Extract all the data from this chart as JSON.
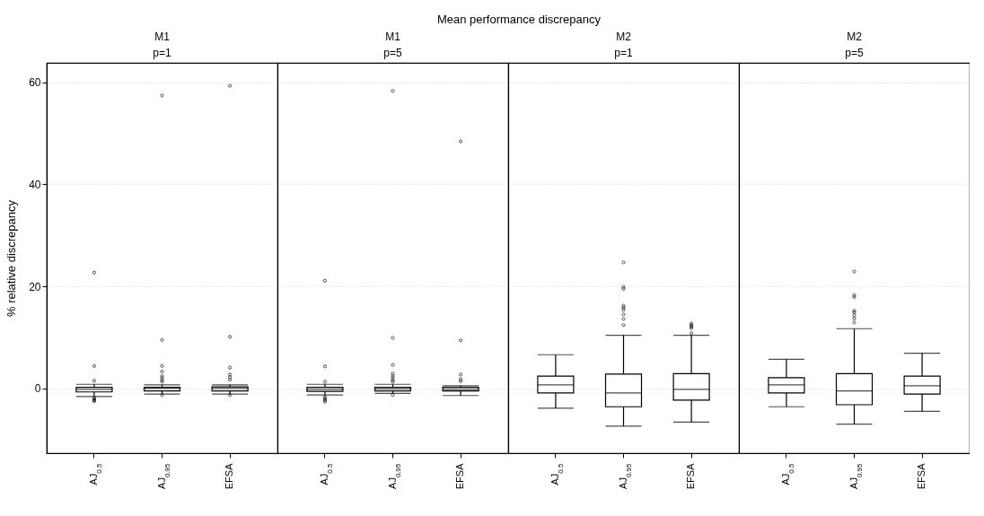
{
  "chart_data": [
    {
      "type": "box",
      "title": "M1",
      "subtitle": "p=1",
      "ylabel": "% relative discrepancy",
      "annotations": [
        "Mean performance discrepancy"
      ],
      "categories": [
        "AJ$_{0.5}$",
        "AJ$_{0.95}$",
        "EFSA"
      ],
      "ylim": [
        -12.7,
        63.8
      ],
      "yticks": [
        0,
        20,
        40,
        60
      ],
      "grid": "y",
      "boxes": [
        {
          "low": -1.6,
          "q1": -0.7,
          "median": -0.2,
          "q3": 0.2,
          "high": 0.8,
          "outliers": [
            22.7,
            4.4,
            1.5,
            -1.9,
            -2.1,
            -2.3,
            -2.5
          ]
        },
        {
          "low": -1.1,
          "q1": -0.5,
          "median": 0.0,
          "q3": 0.2,
          "high": 0.7,
          "outliers": [
            57.4,
            9.5,
            4.4,
            3.3,
            2.4,
            2.0,
            1.6,
            1.3,
            -1.3
          ]
        },
        {
          "low": -1.1,
          "q1": -0.5,
          "median": 0.0,
          "q3": 0.3,
          "high": 0.7,
          "outliers": [
            59.3,
            10.1,
            4.1,
            2.7,
            2.2,
            1.7,
            -1.3
          ]
        }
      ]
    },
    {
      "type": "box",
      "title": "M1",
      "subtitle": "p=5",
      "categories": [
        "AJ$_{0.5}$",
        "AJ$_{0.95}$",
        "EFSA"
      ],
      "ylim": [
        -12.7,
        63.8
      ],
      "yticks": [
        0,
        20,
        40,
        60
      ],
      "grid": "y",
      "tick_labels": "x",
      "boxes": [
        {
          "low": -1.3,
          "q1": -0.6,
          "median": -0.2,
          "q3": 0.2,
          "high": 0.8,
          "outliers": [
            21.1,
            4.3,
            1.3,
            -1.7,
            -2.0,
            -2.3,
            -2.6
          ]
        },
        {
          "low": -1.0,
          "q1": -0.5,
          "median": -0.1,
          "q3": 0.2,
          "high": 0.8,
          "outliers": [
            58.3,
            9.9,
            4.6,
            2.9,
            2.4,
            2.0,
            1.6,
            1.3,
            -1.3
          ]
        },
        {
          "low": -1.4,
          "q1": -0.5,
          "median": -0.2,
          "q3": 0.2,
          "high": 0.5,
          "outliers": [
            48.4,
            9.4,
            2.7,
            1.8,
            1.4
          ]
        }
      ]
    },
    {
      "type": "box",
      "title": "M2",
      "subtitle": "p=1",
      "categories": [
        "AJ$_{0.5}$",
        "AJ$_{0.95}$",
        "EFSA"
      ],
      "ylim": [
        -12.7,
        63.8
      ],
      "yticks": [
        0,
        20,
        40,
        60
      ],
      "grid": "y",
      "tick_labels": "x",
      "boxes": [
        {
          "low": -3.9,
          "q1": -0.9,
          "median": 0.7,
          "q3": 2.4,
          "high": 6.6
        },
        {
          "low": -7.4,
          "q1": -3.6,
          "median": -0.9,
          "q3": 2.8,
          "high": 10.4,
          "outliers": [
            24.7,
            19.9,
            19.5,
            16.2,
            15.8,
            15.4,
            14.5,
            13.6,
            12.4
          ]
        },
        {
          "low": -6.6,
          "q1": -2.3,
          "median": -0.2,
          "q3": 2.9,
          "high": 10.4,
          "outliers": [
            12.7,
            12.4,
            12.1,
            11.8,
            10.8
          ]
        }
      ]
    },
    {
      "type": "box",
      "title": "M2",
      "subtitle": "p=5",
      "categories": [
        "AJ$_{0.5}$",
        "AJ$_{0.95}$",
        "EFSA"
      ],
      "ylim": [
        -12.7,
        63.8
      ],
      "yticks": [
        0,
        20,
        40,
        60
      ],
      "grid": "y",
      "tick_labels": "x",
      "boxes": [
        {
          "low": -3.6,
          "q1": -0.9,
          "median": 0.7,
          "q3": 2.1,
          "high": 5.7
        },
        {
          "low": -7.0,
          "q1": -3.2,
          "median": -0.5,
          "q3": 2.9,
          "high": 11.7,
          "outliers": [
            22.9,
            18.3,
            17.9,
            15.2,
            14.9,
            14.3,
            13.7,
            12.9
          ]
        },
        {
          "low": -4.5,
          "q1": -1.1,
          "median": 0.5,
          "q3": 2.4,
          "high": 6.9
        }
      ]
    }
  ]
}
